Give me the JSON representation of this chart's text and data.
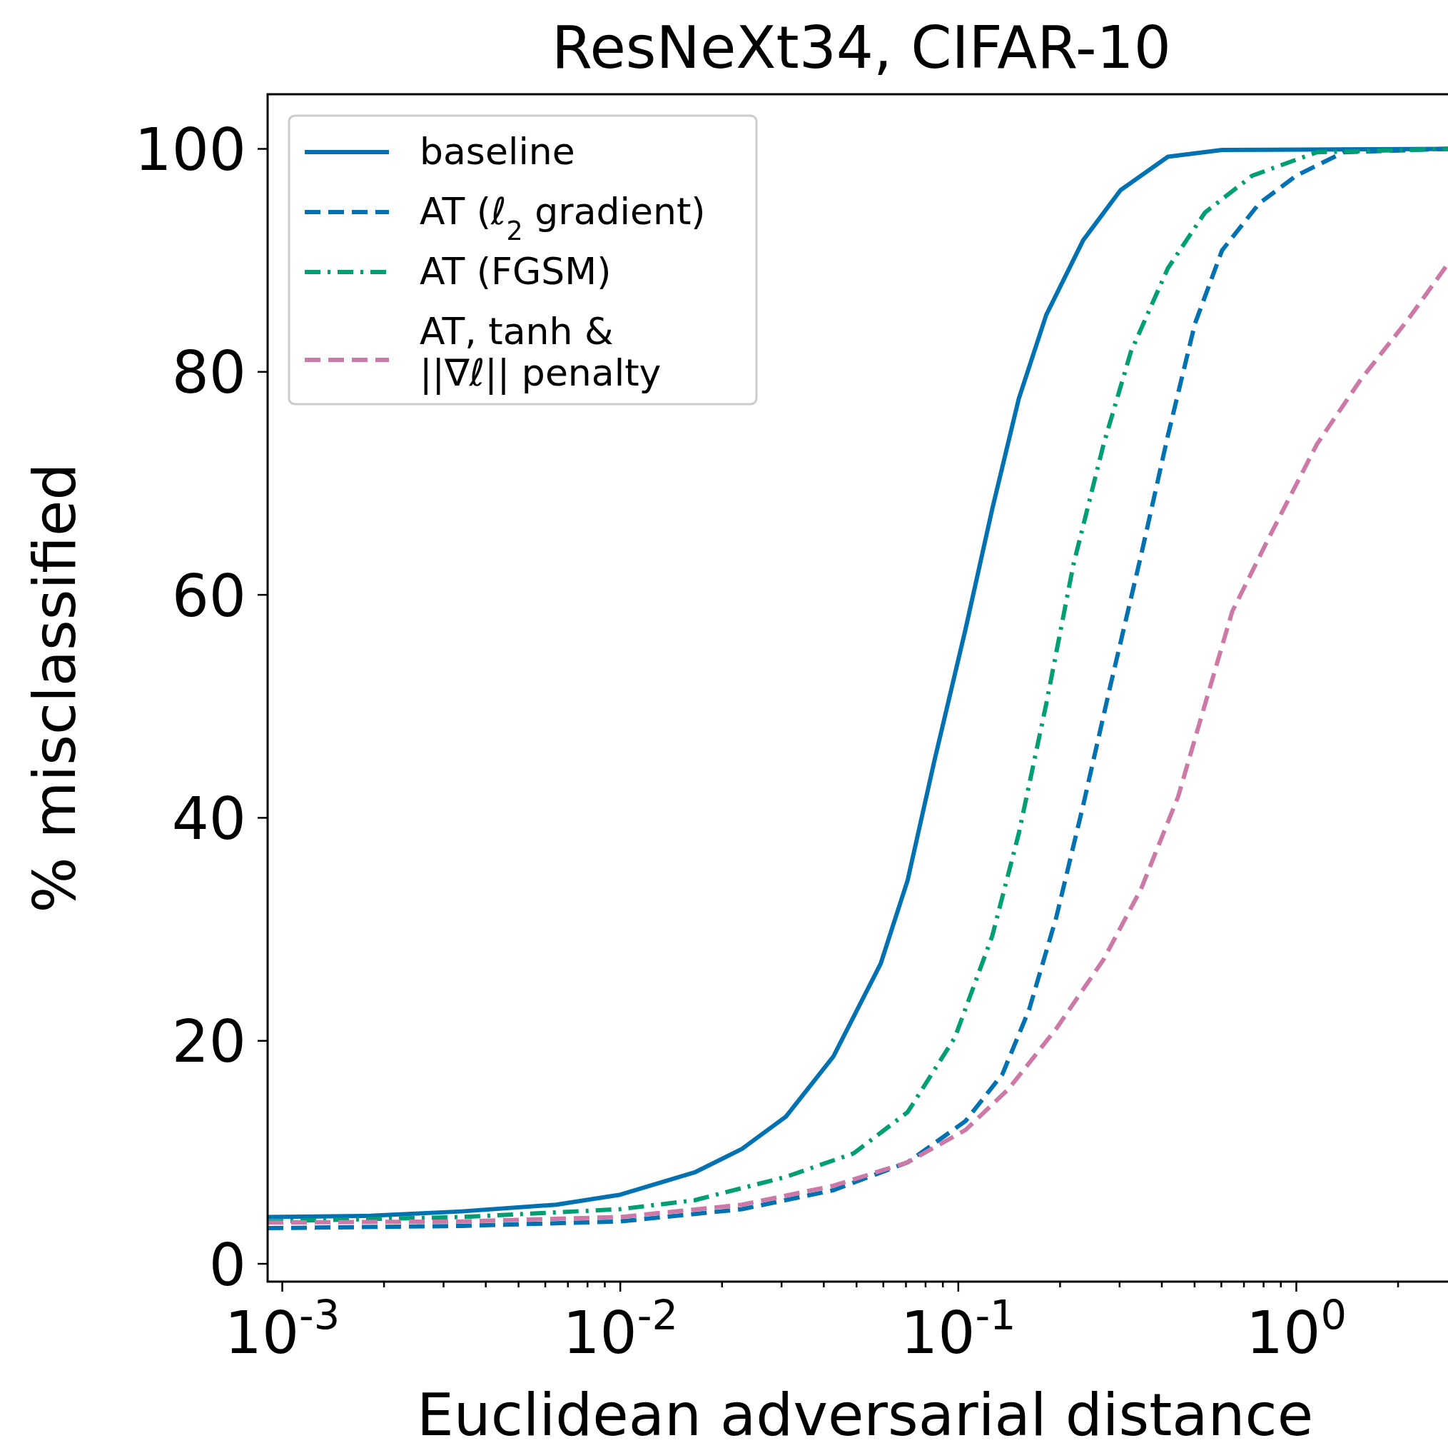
{
  "chart_data": {
    "type": "line",
    "title": "ResNeXt34, CIFAR-10",
    "xlabel": "Euclidean adversarial distance",
    "ylabel": "% misclassified",
    "log": "x",
    "grid": false,
    "legend": "top left",
    "marker": "none",
    "xlim": [
      0.000905,
      2.81
    ],
    "ylim": [
      -1.6,
      104.9
    ],
    "xticks": [
      {
        "value": 0.001,
        "label": "10$^{-3}$"
      },
      {
        "value": 0.002,
        "label": null
      },
      {
        "value": 0.003,
        "label": null
      },
      {
        "value": 0.004,
        "label": null
      },
      {
        "value": 0.005,
        "label": null
      },
      {
        "value": 0.006,
        "label": null
      },
      {
        "value": 0.007,
        "label": null
      },
      {
        "value": 0.008,
        "label": null
      },
      {
        "value": 0.009,
        "label": null
      },
      {
        "value": 0.01,
        "label": "10$^{-2}$"
      },
      {
        "value": 0.02,
        "label": null
      },
      {
        "value": 0.03,
        "label": null
      },
      {
        "value": 0.04,
        "label": null
      },
      {
        "value": 0.05,
        "label": null
      },
      {
        "value": 0.06,
        "label": null
      },
      {
        "value": 0.07,
        "label": null
      },
      {
        "value": 0.08,
        "label": null
      },
      {
        "value": 0.09,
        "label": null
      },
      {
        "value": 0.1,
        "label": "10$^{-1}$"
      },
      {
        "value": 0.2,
        "label": null
      },
      {
        "value": 0.3,
        "label": null
      },
      {
        "value": 0.4,
        "label": null
      },
      {
        "value": 0.5,
        "label": null
      },
      {
        "value": 0.6,
        "label": null
      },
      {
        "value": 0.7,
        "label": null
      },
      {
        "value": 0.8,
        "label": null
      },
      {
        "value": 0.9,
        "label": null
      },
      {
        "value": 1,
        "label": "10$^{0}$"
      },
      {
        "value": 2,
        "label": null
      }
    ],
    "yticks": [
      0,
      20,
      40,
      60,
      80,
      100
    ],
    "series": [
      {
        "name": "baseline",
        "color": "#0072b2",
        "line_style": "solid",
        "x": [
          0.000905,
          0.00182,
          0.00339,
          0.00646,
          0.01,
          0.0166,
          0.0229,
          0.0309,
          0.0427,
          0.0589,
          0.0708,
          0.0851,
          0.105,
          0.126,
          0.151,
          0.182,
          0.234,
          0.302,
          0.417,
          0.603,
          2.81
        ],
        "values": [
          4.2,
          4.3,
          4.7,
          5.3,
          6.2,
          8.2,
          10.3,
          13.2,
          18.6,
          26.9,
          34.4,
          45.2,
          56.9,
          67.7,
          77.6,
          85.1,
          91.8,
          96.3,
          99.3,
          99.9,
          100
        ]
      },
      {
        "name": "AT (ℓ$_{2}$ gradient)",
        "color": "#0072b2",
        "line_style": "dashed",
        "x": [
          0.000905,
          0.00339,
          0.01,
          0.0229,
          0.0427,
          0.0708,
          0.105,
          0.135,
          0.162,
          0.195,
          0.234,
          0.282,
          0.347,
          0.417,
          0.501,
          0.603,
          0.776,
          1,
          1.38,
          2.81
        ],
        "values": [
          3.2,
          3.4,
          3.8,
          4.9,
          6.6,
          9.1,
          12.8,
          17,
          22.8,
          31.1,
          41.1,
          51.9,
          63.5,
          74.3,
          84.3,
          90.9,
          95.1,
          97.6,
          99.7,
          100
        ]
      },
      {
        "name": "AT (FGSM)",
        "color": "#009e73",
        "line_style": "dashdot",
        "x": [
          0.000905,
          0.00339,
          0.01,
          0.0166,
          0.0309,
          0.049,
          0.0708,
          0.0977,
          0.126,
          0.151,
          0.182,
          0.219,
          0.269,
          0.324,
          0.417,
          0.537,
          0.741,
          1.15,
          2.81
        ],
        "values": [
          3.8,
          4.2,
          4.9,
          5.7,
          7.8,
          9.9,
          13.6,
          20.3,
          29.4,
          38.6,
          50.2,
          62.7,
          73.5,
          81.8,
          89.3,
          94.3,
          97.6,
          99.7,
          100
        ]
      },
      {
        "name": "AT, tanh &\n||∇ℓ|| penalty",
        "color": "#cc79a7",
        "line_style": "dashed",
        "x": [
          0.000905,
          0.00339,
          0.01,
          0.0229,
          0.0427,
          0.0708,
          0.105,
          0.141,
          0.195,
          0.269,
          0.347,
          0.447,
          0.537,
          0.646,
          0.832,
          1.15,
          1.55,
          2.14,
          2.81
        ],
        "values": [
          3.7,
          3.8,
          4.2,
          5.3,
          7.0,
          9.1,
          12.0,
          15.7,
          21.1,
          27.3,
          33.6,
          41.9,
          50.2,
          58.5,
          65.2,
          73.5,
          79.3,
          84.7,
          89.7
        ]
      }
    ]
  }
}
